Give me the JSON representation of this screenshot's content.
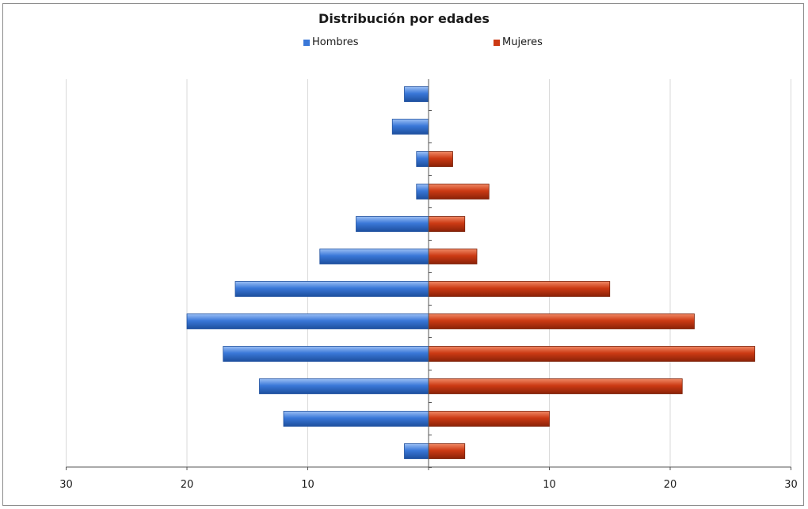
{
  "chart_data": {
    "type": "bar",
    "orientation": "horizontal-population-pyramid",
    "title": "Distribución por edades",
    "legend_position": "top",
    "xlim": [
      -30,
      30
    ],
    "xticks": [
      -30,
      -20,
      -10,
      0,
      10,
      20,
      30
    ],
    "xtick_labels": [
      "30",
      "20",
      "10",
      "",
      "10",
      "20",
      "30"
    ],
    "grid": true,
    "series": [
      {
        "name": "Hombres",
        "color": "#3a78d8",
        "values": [
          2,
          12,
          14,
          17,
          20,
          16,
          9,
          6,
          1,
          1,
          3,
          2
        ]
      },
      {
        "name": "Mujeres",
        "color": "#cc3a14",
        "values": [
          3,
          10,
          21,
          27,
          22,
          15,
          4,
          3,
          5,
          2,
          0,
          0
        ]
      }
    ]
  }
}
